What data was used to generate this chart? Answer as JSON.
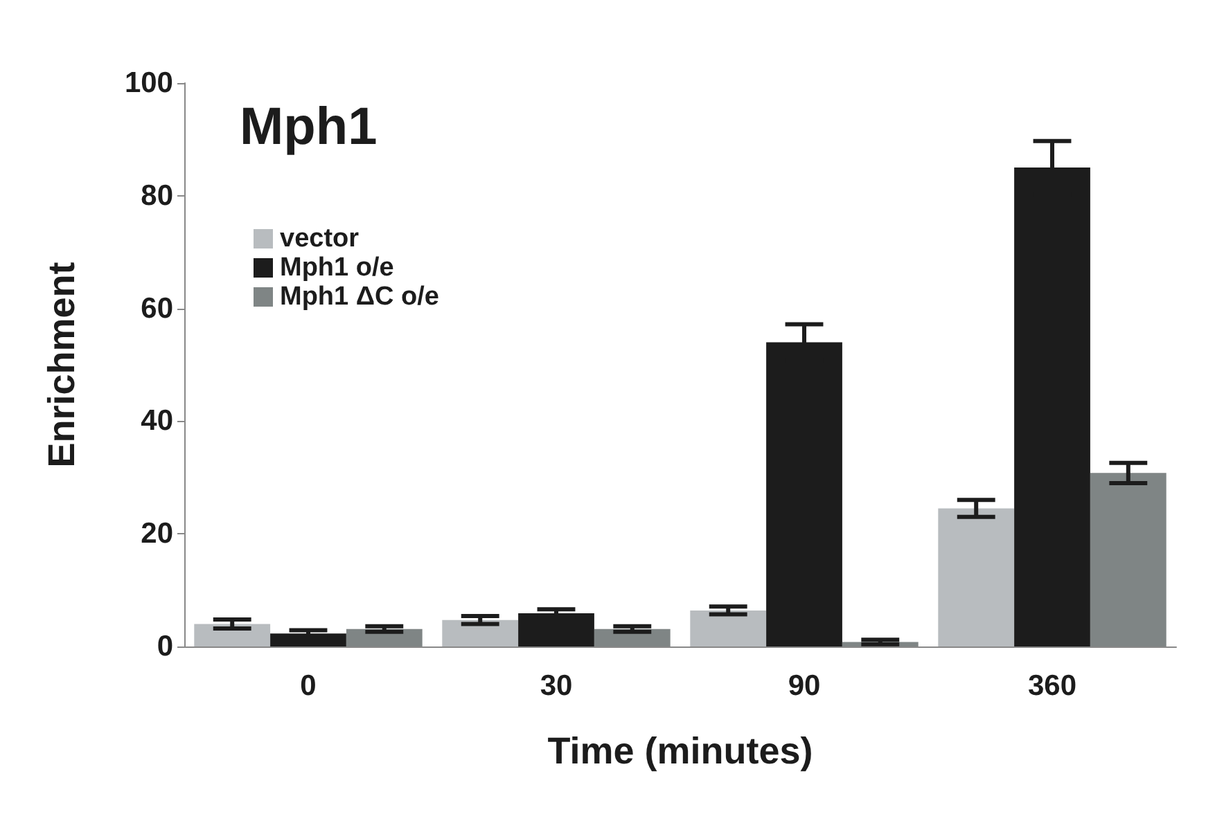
{
  "chart_data": {
    "type": "bar",
    "title": "Mph1",
    "xlabel": "Time (minutes)",
    "ylabel": "Enrichment",
    "categories": [
      "0",
      "30",
      "90",
      "360"
    ],
    "series": [
      {
        "name": "vector",
        "color": "#b8bcbf",
        "values": [
          4,
          4.7,
          6.4,
          24.5
        ],
        "errors": [
          0.8,
          0.7,
          0.7,
          1.5
        ]
      },
      {
        "name": "Mph1 o/e",
        "color": "#1c1c1c",
        "values": [
          2.3,
          5.9,
          54,
          85
        ],
        "errors": [
          0.6,
          0.7,
          3.2,
          4.7
        ]
      },
      {
        "name": "Mph1 ΔC o/e",
        "color": "#7f8585",
        "values": [
          3.1,
          3.1,
          0.8,
          30.8
        ],
        "errors": [
          0.5,
          0.5,
          0.4,
          1.8
        ]
      }
    ],
    "ylim": [
      0,
      100
    ],
    "yticks": [
      0,
      20,
      40,
      60,
      80,
      100
    ],
    "grid": false,
    "legend": "top left"
  }
}
